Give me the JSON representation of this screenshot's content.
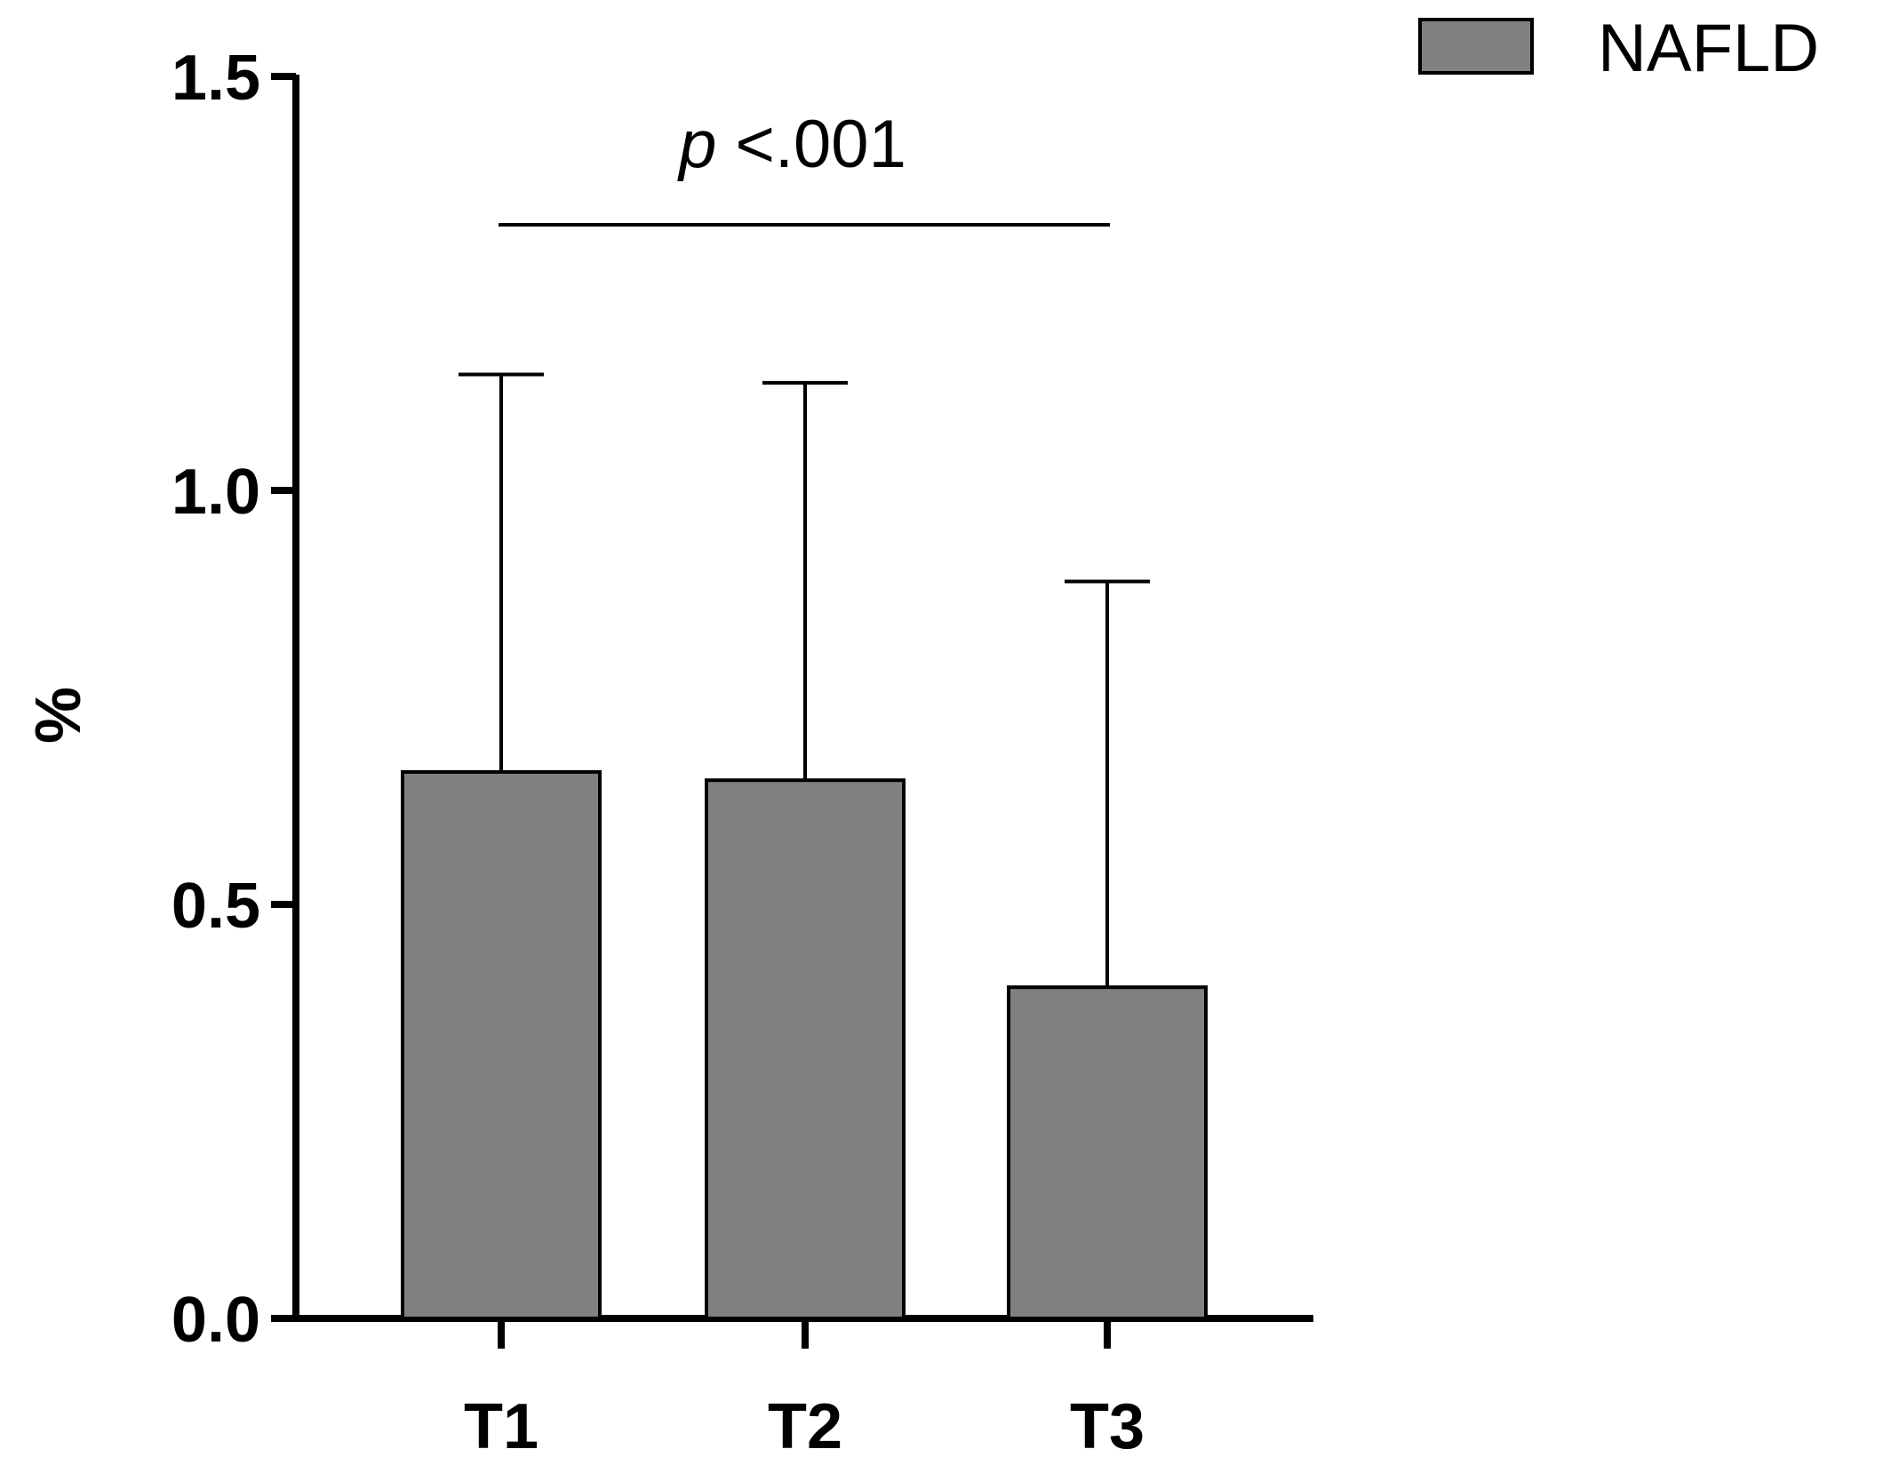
{
  "chart_data": {
    "type": "bar",
    "categories": [
      "T1",
      "T2",
      "T3"
    ],
    "series": [
      {
        "name": "NAFLD",
        "values": [
          0.66,
          0.65,
          0.4
        ],
        "error_upper": [
          1.14,
          1.13,
          0.89
        ],
        "color": "#808080"
      }
    ],
    "title": "",
    "xlabel": "",
    "ylabel": "%",
    "ylim": [
      0,
      1.5
    ],
    "yticks": [
      "0.0",
      "0.5",
      "1.0",
      "1.5"
    ],
    "grid": false,
    "legend": "top-right",
    "annotation": {
      "p_symbol": "p",
      "p_text": " <.001",
      "spans": [
        "T1",
        "T3"
      ]
    }
  }
}
